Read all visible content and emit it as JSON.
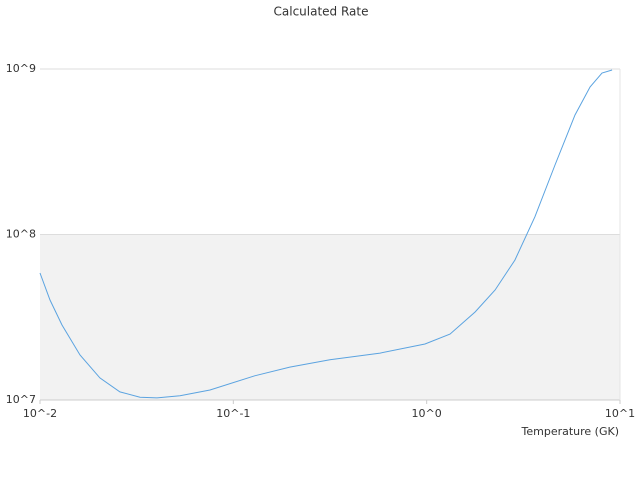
{
  "chart_data": {
    "type": "line",
    "title": "Calculated Rate",
    "x_label": "Temperature (GK)",
    "log_x": true,
    "log_y": true,
    "band_color": "#f2f2f2",
    "color": "#5ba3e0",
    "x": [
      0.01,
      0.01127,
      0.013,
      0.0161,
      0.0204,
      0.0259,
      0.0329,
      0.0403,
      0.053,
      0.0757,
      0.129,
      0.196,
      0.316,
      0.574,
      0.98,
      1.32,
      1.78,
      2.26,
      2.86,
      3.63,
      4.61,
      5.85,
      7.0,
      8.07,
      9.1
    ],
    "values": [
      58500000,
      40200000,
      28400000,
      18700000,
      13600000,
      11200000,
      10400000,
      10300000,
      10600000,
      11500000,
      14000000,
      15800000,
      17500000,
      19200000,
      21800000,
      25000000,
      34000000,
      46200000,
      70000000,
      128000000,
      263000000,
      527000000,
      780000000,
      946000000,
      986000000
    ],
    "xlim": [
      0.01,
      10
    ],
    "ylim": [
      10000000,
      1000000000
    ],
    "xticks": [
      {
        "value": 0.01,
        "label": "10^-2"
      },
      {
        "value": 0.1,
        "label": "10^-1"
      },
      {
        "value": 1,
        "label": "10^0"
      },
      {
        "value": 10,
        "label": "10^1"
      }
    ],
    "yticks": [
      {
        "value": 10000000,
        "label": "10^7"
      },
      {
        "value": 100000000,
        "label": "10^8"
      },
      {
        "value": 1000000000,
        "label": "10^9"
      }
    ]
  }
}
